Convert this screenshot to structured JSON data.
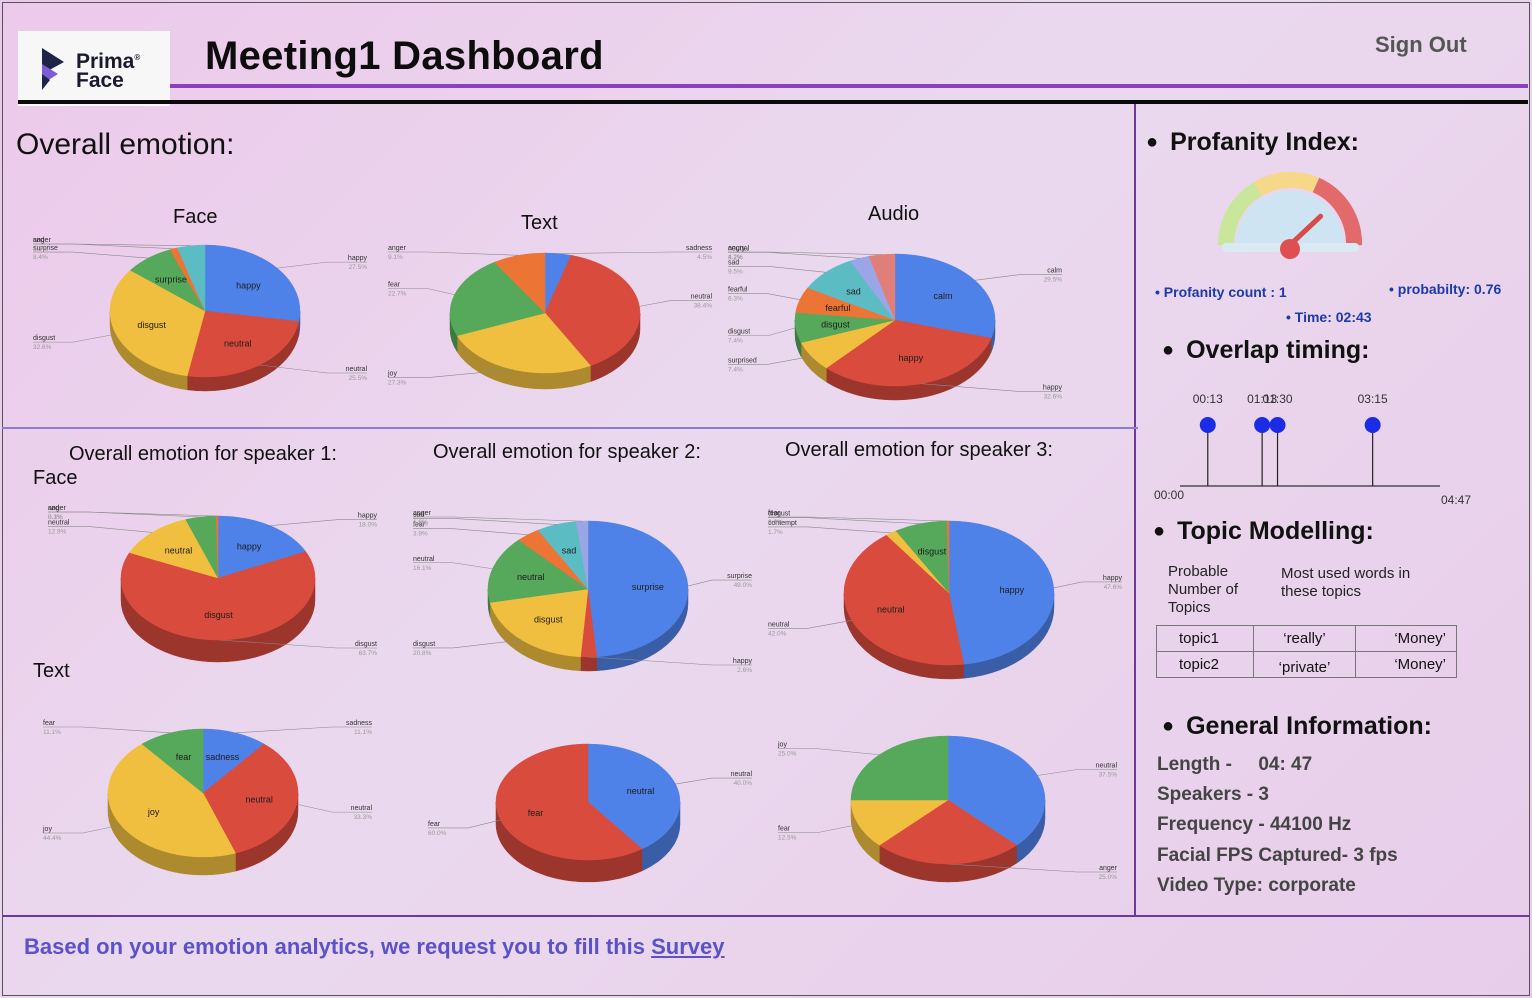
{
  "brand": {
    "name_line1": "Prima",
    "name_line2": "Face"
  },
  "header": {
    "title": "Meeting1 Dashboard",
    "signout_label": "Sign Out"
  },
  "overall": {
    "title": "Overall emotion:",
    "face_title": "Face",
    "text_title": "Text",
    "audio_title": "Audio"
  },
  "speakers": {
    "s1_title": "Overall emotion for speaker 1:",
    "s2_title": "Overall emotion for speaker 2:",
    "s3_title": "Overall emotion for speaker 3:",
    "face_label": "Face",
    "text_label": "Text"
  },
  "colors": {
    "blue": "#4f82e8",
    "red": "#d94b3d",
    "yellow": "#f0bf3f",
    "green": "#56a85a",
    "orange": "#ec7434",
    "teal": "#5bbcc4",
    "purple": "#9aa6e6",
    "pink": "#e07f7a",
    "darkred": "#b03a2e"
  },
  "chart_data": [
    {
      "id": "overall_face",
      "type": "pie",
      "slices": [
        {
          "label": "happy",
          "value": 27.5,
          "pct": "27.5%",
          "color": "#4f82e8",
          "inside": true
        },
        {
          "label": "neutral",
          "value": 25.5,
          "pct": "25.5%",
          "color": "#d94b3d",
          "inside": true
        },
        {
          "label": "disgust",
          "value": 32.6,
          "pct": "32.6%",
          "color": "#f0bf3f",
          "inside": true
        },
        {
          "label": "surprise",
          "value": 8.4,
          "pct": "8.4%",
          "color": "#56a85a",
          "inside": true
        },
        {
          "label": "sad",
          "value": 1.3,
          "pct": "1.3%",
          "color": "#ec7434",
          "inside": false
        },
        {
          "label": "anger",
          "value": 4.7,
          "pct": "4.7%",
          "color": "#5bbcc4",
          "inside": false
        }
      ]
    },
    {
      "id": "overall_text",
      "type": "pie",
      "slices": [
        {
          "label": "sadness",
          "value": 4.5,
          "pct": "4.5%",
          "color": "#4f82e8",
          "inside": false
        },
        {
          "label": "neutral",
          "value": 38.4,
          "pct": "38.4%",
          "color": "#d94b3d",
          "inside": false
        },
        {
          "label": "joy",
          "value": 27.3,
          "pct": "27.3%",
          "color": "#f0bf3f",
          "inside": false
        },
        {
          "label": "fear",
          "value": 22.7,
          "pct": "22.7%",
          "color": "#56a85a",
          "inside": false
        },
        {
          "label": "anger",
          "value": 9.1,
          "pct": "9.1%",
          "color": "#ec7434",
          "inside": false
        }
      ]
    },
    {
      "id": "overall_audio",
      "type": "pie",
      "slices": [
        {
          "label": "calm",
          "value": 29.5,
          "pct": "29.5%",
          "color": "#4f82e8",
          "inside": true
        },
        {
          "label": "happy",
          "value": 32.6,
          "pct": "32.6%",
          "color": "#d94b3d",
          "inside": true
        },
        {
          "label": "surprised",
          "value": 7.4,
          "pct": "7.4%",
          "color": "#f0bf3f",
          "inside": false
        },
        {
          "label": "disgust",
          "value": 7.4,
          "pct": "7.4%",
          "color": "#56a85a",
          "inside": true
        },
        {
          "label": "fearful",
          "value": 6.3,
          "pct": "6.3%",
          "color": "#ec7434",
          "inside": true
        },
        {
          "label": "sad",
          "value": 9.5,
          "pct": "9.5%",
          "color": "#5bbcc4",
          "inside": true
        },
        {
          "label": "neutral",
          "value": 3.2,
          "pct": "3.2%",
          "color": "#9aa6e6",
          "inside": false
        },
        {
          "label": "angry",
          "value": 4.2,
          "pct": "4.2%",
          "color": "#e07f7a",
          "inside": false
        }
      ]
    },
    {
      "id": "s1_face",
      "type": "pie",
      "slices": [
        {
          "label": "happy",
          "value": 18.0,
          "pct": "18.0%",
          "color": "#4f82e8",
          "inside": true
        },
        {
          "label": "disgust",
          "value": 63.7,
          "pct": "63.7%",
          "color": "#d94b3d",
          "inside": true
        },
        {
          "label": "neutral",
          "value": 12.9,
          "pct": "12.9%",
          "color": "#f0bf3f",
          "inside": true
        },
        {
          "label": "anger",
          "value": 5.1,
          "pct": "5.1%",
          "color": "#56a85a",
          "inside": false
        },
        {
          "label": "sad",
          "value": 0.3,
          "pct": "0.3%",
          "color": "#ec7434",
          "inside": false
        }
      ]
    },
    {
      "id": "s2_face",
      "type": "pie",
      "slices": [
        {
          "label": "surprise",
          "value": 49.0,
          "pct": "49.0%",
          "color": "#4f82e8",
          "inside": true
        },
        {
          "label": "happy",
          "value": 2.6,
          "pct": "2.6%",
          "color": "#d94b3d",
          "inside": false
        },
        {
          "label": "disgust",
          "value": 20.8,
          "pct": "20.8%",
          "color": "#f0bf3f",
          "inside": true
        },
        {
          "label": "neutral",
          "value": 16.1,
          "pct": "16.1%",
          "color": "#56a85a",
          "inside": true
        },
        {
          "label": "fear",
          "value": 3.9,
          "pct": "3.9%",
          "color": "#ec7434",
          "inside": false
        },
        {
          "label": "sad",
          "value": 6.5,
          "pct": "6.5%",
          "color": "#5bbcc4",
          "inside": true
        },
        {
          "label": "anger",
          "value": 1.9,
          "pct": "1.9%",
          "color": "#9aa6e6",
          "inside": false
        }
      ]
    },
    {
      "id": "s3_face",
      "type": "pie",
      "slices": [
        {
          "label": "happy",
          "value": 47.6,
          "pct": "47.6%",
          "color": "#4f82e8",
          "inside": true
        },
        {
          "label": "neutral",
          "value": 42.0,
          "pct": "42.0%",
          "color": "#d94b3d",
          "inside": true
        },
        {
          "label": "contempt",
          "value": 1.7,
          "pct": "1.7%",
          "color": "#f0bf3f",
          "inside": false
        },
        {
          "label": "disgust",
          "value": 8.1,
          "pct": "8.1%",
          "color": "#56a85a",
          "inside": true
        },
        {
          "label": "fear",
          "value": 0.3,
          "pct": "0.3%",
          "color": "#ec7434",
          "inside": false
        }
      ]
    },
    {
      "id": "s1_text",
      "type": "pie",
      "slices": [
        {
          "label": "sadness",
          "value": 11.1,
          "pct": "11.1%",
          "color": "#4f82e8",
          "inside": true
        },
        {
          "label": "neutral",
          "value": 33.3,
          "pct": "33.3%",
          "color": "#d94b3d",
          "inside": true
        },
        {
          "label": "joy",
          "value": 44.4,
          "pct": "44.4%",
          "color": "#f0bf3f",
          "inside": true
        },
        {
          "label": "fear",
          "value": 11.1,
          "pct": "11.1%",
          "color": "#56a85a",
          "inside": true
        }
      ]
    },
    {
      "id": "s2_text",
      "type": "pie",
      "slices": [
        {
          "label": "neutral",
          "value": 40.0,
          "pct": "40.0%",
          "color": "#4f82e8",
          "inside": true
        },
        {
          "label": "fear",
          "value": 60.0,
          "pct": "60.0%",
          "color": "#d94b3d",
          "inside": true
        }
      ]
    },
    {
      "id": "s3_text",
      "type": "pie",
      "slices": [
        {
          "label": "neutral",
          "value": 37.5,
          "pct": "37.5%",
          "color": "#4f82e8",
          "inside": false
        },
        {
          "label": "anger",
          "value": 25.0,
          "pct": "25.0%",
          "color": "#d94b3d",
          "inside": false
        },
        {
          "label": "fear",
          "value": 12.5,
          "pct": "12.5%",
          "color": "#f0bf3f",
          "inside": false
        },
        {
          "label": "joy",
          "value": 25.0,
          "pct": "25.0%",
          "color": "#56a85a",
          "inside": false
        }
      ]
    }
  ],
  "profanity": {
    "title": "Profanity Index:",
    "count": "Profanity count : 1",
    "probability": "probabilty: 0.76",
    "time": "Time: 02:43",
    "gauge_value": 0.76
  },
  "overlap": {
    "title": "Overlap timing:",
    "start": "00:00",
    "end": "04:47",
    "duration_s": 287,
    "marks": [
      {
        "label": "00:13",
        "t": 13
      },
      {
        "label": "01:13",
        "t": 73
      },
      {
        "label": "01:30",
        "t": 90
      },
      {
        "label": "03:15",
        "t": 195
      }
    ]
  },
  "topics": {
    "title": "Topic Modelling:",
    "col1_header": "Probable Number of Topics",
    "col2_header": "Most used words in these topics",
    "rows": [
      {
        "topic": "topic1",
        "w1": "‘really’",
        "w2": "‘Money’"
      },
      {
        "topic": "topic2",
        "w1": "‘private’",
        "w2": "‘Money’"
      }
    ]
  },
  "general": {
    "title": "General Information:",
    "length": "Length -     04: 47",
    "speakers": "Speakers -  3",
    "frequency": "Frequency - 44100 Hz",
    "fps": "Facial FPS Captured- 3 fps",
    "video_type": "Video Type: corporate"
  },
  "footer": {
    "text": "Based on your emotion analytics, we request you to fill this ",
    "link": "Survey"
  }
}
